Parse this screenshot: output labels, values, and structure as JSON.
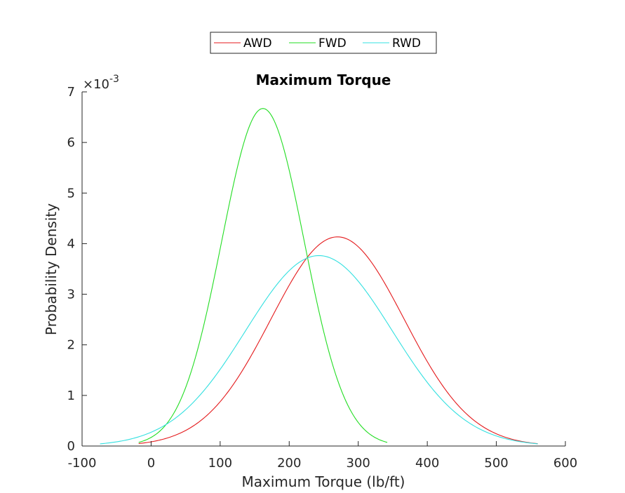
{
  "chart_data": {
    "type": "line",
    "title": "Maximum Torque",
    "xlabel": "Maximum Torque (lb/ft)",
    "ylabel": "Probability Density",
    "xlim": [
      -100,
      600
    ],
    "ylim": [
      0,
      0.007
    ],
    "x_ticks": [
      -100,
      0,
      100,
      200,
      300,
      400,
      500,
      600
    ],
    "x_tick_labels": [
      "-100",
      "0",
      "100",
      "200",
      "300",
      "400",
      "500",
      "600"
    ],
    "y_ticks": [
      0,
      0.001,
      0.002,
      0.003,
      0.004,
      0.005,
      0.006,
      0.007
    ],
    "y_tick_labels": [
      "0",
      "1",
      "2",
      "3",
      "4",
      "5",
      "6",
      "7"
    ],
    "y_exponent_base": "×10",
    "y_exponent_power": "-3",
    "legend_position": "top-center, outside",
    "series": [
      {
        "name": "AWD",
        "color": "#e41a1c",
        "distribution": "normal",
        "mean": 270,
        "sd": 96.5,
        "x_range": [
          -18,
          560
        ]
      },
      {
        "name": "FWD",
        "color": "#22dd22",
        "distribution": "normal",
        "mean": 162,
        "sd": 59.8,
        "x_range": [
          -18,
          342
        ]
      },
      {
        "name": "RWD",
        "color": "#33e0e0",
        "distribution": "normal",
        "mean": 243,
        "sd": 106,
        "x_range": [
          -74,
          560
        ]
      }
    ]
  }
}
